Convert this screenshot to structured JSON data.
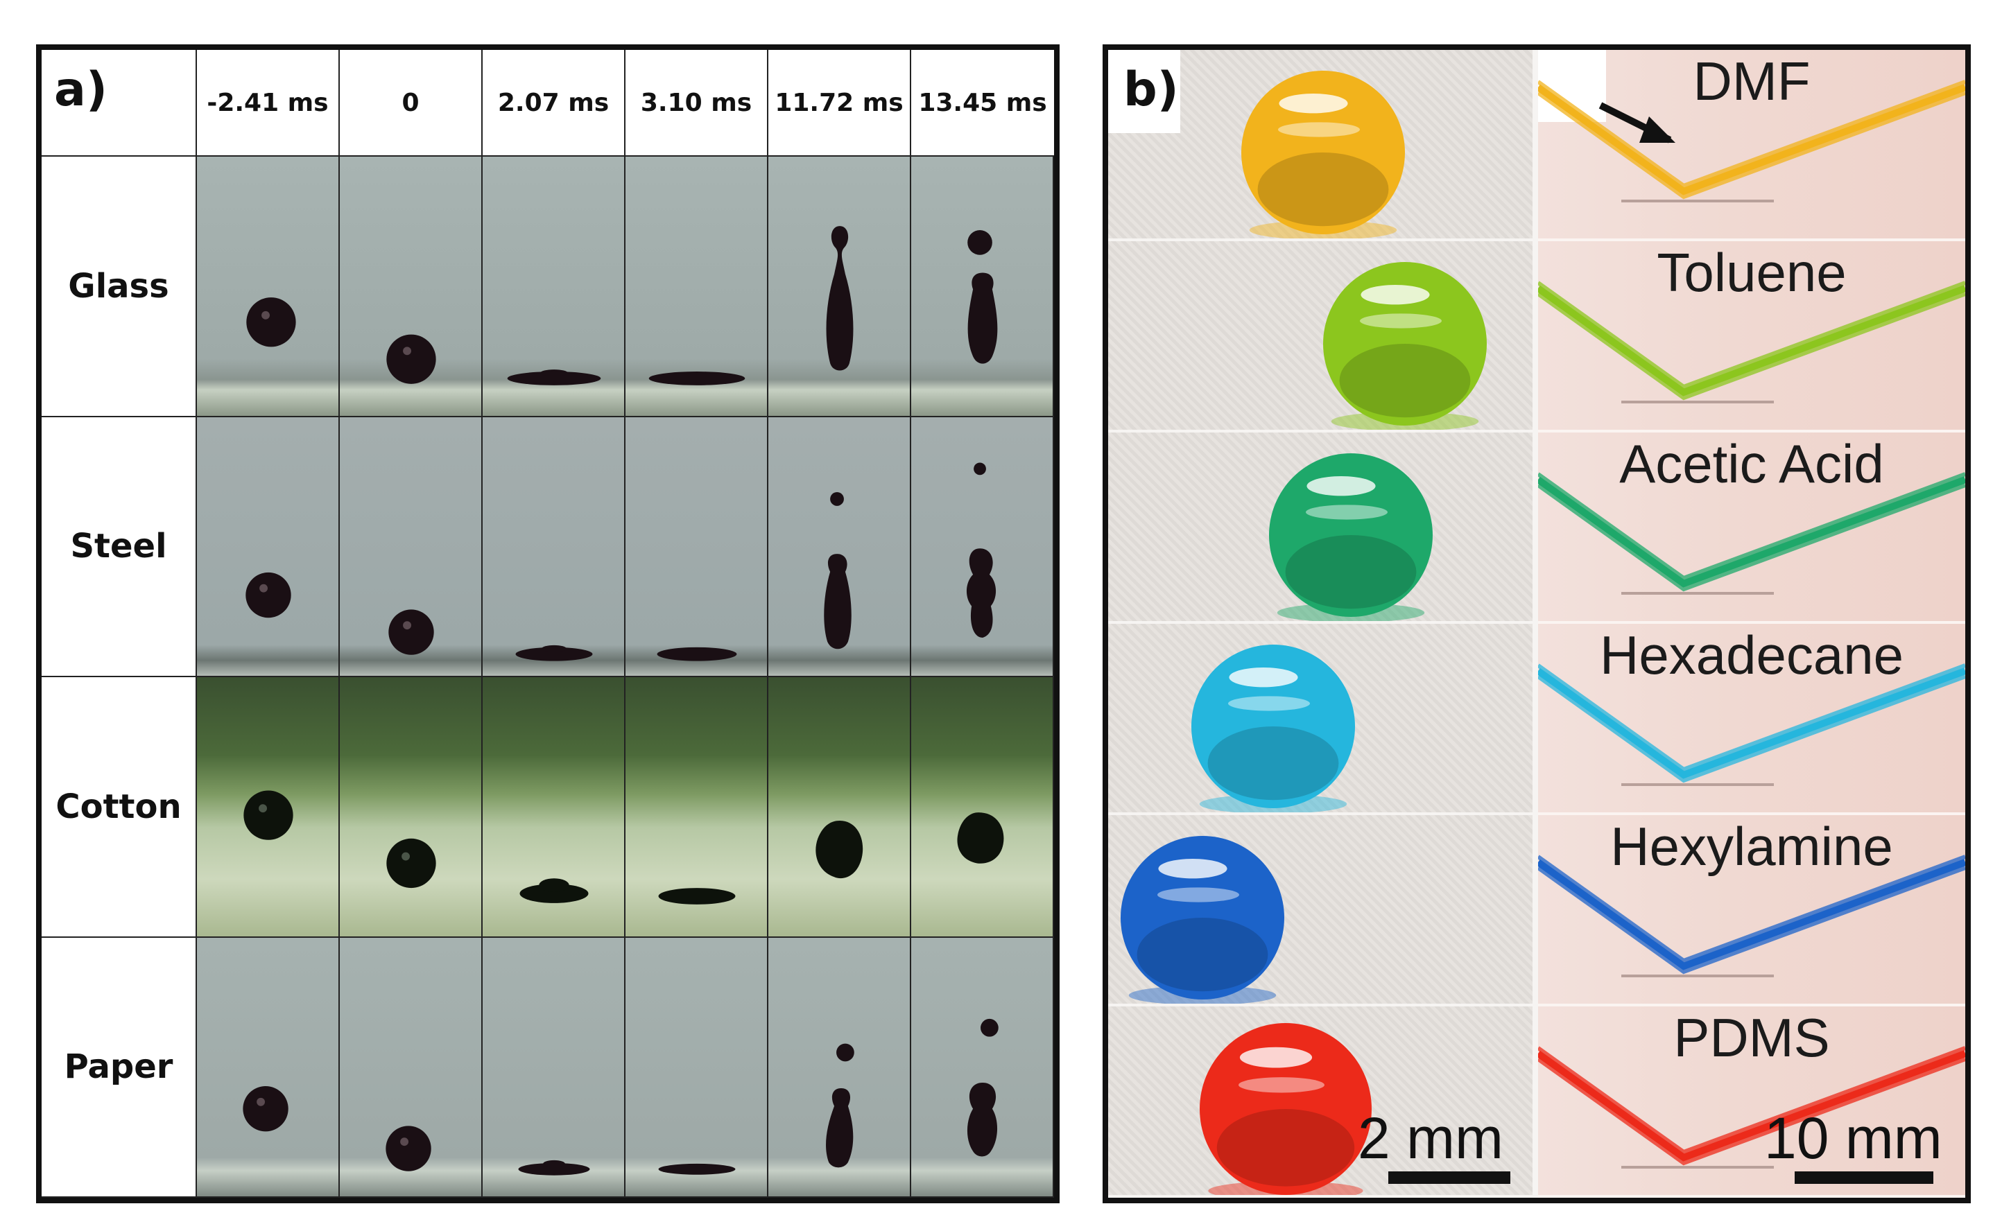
{
  "panel_a": {
    "label": "a)",
    "time_headers": [
      "-2.41 ms",
      "0",
      "2.07 ms",
      "3.10 ms",
      "11.72 ms",
      "13.45 ms"
    ],
    "surfaces": [
      "Glass",
      "Steel",
      "Cotton",
      "Paper"
    ]
  },
  "panel_b": {
    "label": "b)",
    "solvents": [
      "DMF",
      "Toluene",
      "Acetic Acid",
      "Hexadecane",
      "Hexylamine",
      "PDMS"
    ],
    "solvent_colors": [
      "#f2b31c",
      "#8cc61e",
      "#1ea86a",
      "#25b6dd",
      "#1c63c9",
      "#ec2a1a"
    ],
    "scale_left": "2 mm",
    "scale_right": "10 mm"
  }
}
